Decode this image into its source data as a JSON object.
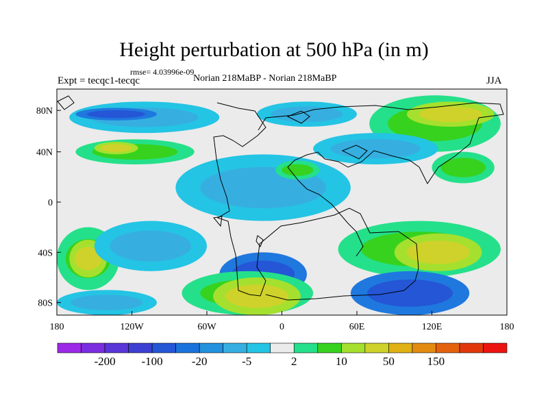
{
  "chart_data": {
    "type": "heatmap",
    "title": "Height perturbation at 500 hPa (in m)",
    "rmse_label": "rmse= 4.03996e-09",
    "left_label": "Expt = tecqc1-tecqc",
    "center_label": "Norian 218MaBP - Norian 218MaBP",
    "right_label": "JJA",
    "x_ticks": [
      "180",
      "120W",
      "60W",
      "0",
      "60E",
      "120E",
      "180"
    ],
    "y_ticks": [
      "80N",
      "40N",
      "0",
      "40S",
      "80S"
    ],
    "xlim": [
      -180,
      180
    ],
    "ylim": [
      -90,
      90
    ],
    "colorbar_labels": [
      "-200",
      "-100",
      "-20",
      "-5",
      "2",
      "10",
      "50",
      "150"
    ],
    "colorbar_colors": [
      "#9c28e8",
      "#7b2ee0",
      "#5a35d8",
      "#3d3fd2",
      "#2456d6",
      "#1a73dc",
      "#2292de",
      "#36afe0",
      "#24c4e4",
      "#ebebeb",
      "#25e08a",
      "#37d21e",
      "#a5e02e",
      "#cfd22a",
      "#e0b114",
      "#e28a12",
      "#e4620e",
      "#e0380a",
      "#ec1410"
    ],
    "colorbar_label_positions": [
      1,
      3,
      5,
      7,
      9,
      11,
      13,
      15
    ],
    "regions": [
      {
        "level": "-5",
        "lon": [
          -170,
          -50
        ],
        "lat": [
          55,
          80
        ]
      },
      {
        "level": "-20",
        "lon": [
          -165,
          -100
        ],
        "lat": [
          65,
          75
        ]
      },
      {
        "level": "-5",
        "lon": [
          -20,
          60
        ],
        "lat": [
          60,
          80
        ]
      },
      {
        "level": "10",
        "lon": [
          70,
          175
        ],
        "lat": [
          40,
          85
        ]
      },
      {
        "level": "50",
        "lon": [
          100,
          170
        ],
        "lat": [
          60,
          80
        ]
      },
      {
        "level": "-5",
        "lon": [
          25,
          125
        ],
        "lat": [
          30,
          55
        ]
      },
      {
        "level": "10",
        "lon": [
          -165,
          -70
        ],
        "lat": [
          30,
          50
        ]
      },
      {
        "level": "50",
        "lon": [
          -150,
          -115
        ],
        "lat": [
          38,
          48
        ]
      },
      {
        "level": "10",
        "lon": [
          120,
          170
        ],
        "lat": [
          15,
          40
        ]
      },
      {
        "level": "-5",
        "lon": [
          -85,
          55
        ],
        "lat": [
          -15,
          38
        ]
      },
      {
        "level": "10",
        "lon": [
          -5,
          30
        ],
        "lat": [
          18,
          33
        ]
      },
      {
        "level": "-20",
        "lon": [
          -50,
          20
        ],
        "lat": [
          -75,
          -40
        ]
      },
      {
        "level": "10",
        "lon": [
          -180,
          -130
        ],
        "lat": [
          -70,
          -20
        ]
      },
      {
        "level": "50",
        "lon": [
          -170,
          -140
        ],
        "lat": [
          -60,
          -30
        ]
      },
      {
        "level": "-5",
        "lon": [
          -150,
          -60
        ],
        "lat": [
          -55,
          -15
        ]
      },
      {
        "level": "10",
        "lon": [
          45,
          175
        ],
        "lat": [
          -60,
          -15
        ]
      },
      {
        "level": "50",
        "lon": [
          90,
          160
        ],
        "lat": [
          -55,
          -25
        ]
      },
      {
        "level": "-20",
        "lon": [
          55,
          150
        ],
        "lat": [
          -90,
          -55
        ]
      },
      {
        "level": "10",
        "lon": [
          -80,
          25
        ],
        "lat": [
          -90,
          -55
        ]
      },
      {
        "level": "50",
        "lon": [
          -55,
          15
        ],
        "lat": [
          -90,
          -60
        ]
      },
      {
        "level": "-5",
        "lon": [
          -180,
          -100
        ],
        "lat": [
          -90,
          -70
        ]
      }
    ]
  }
}
